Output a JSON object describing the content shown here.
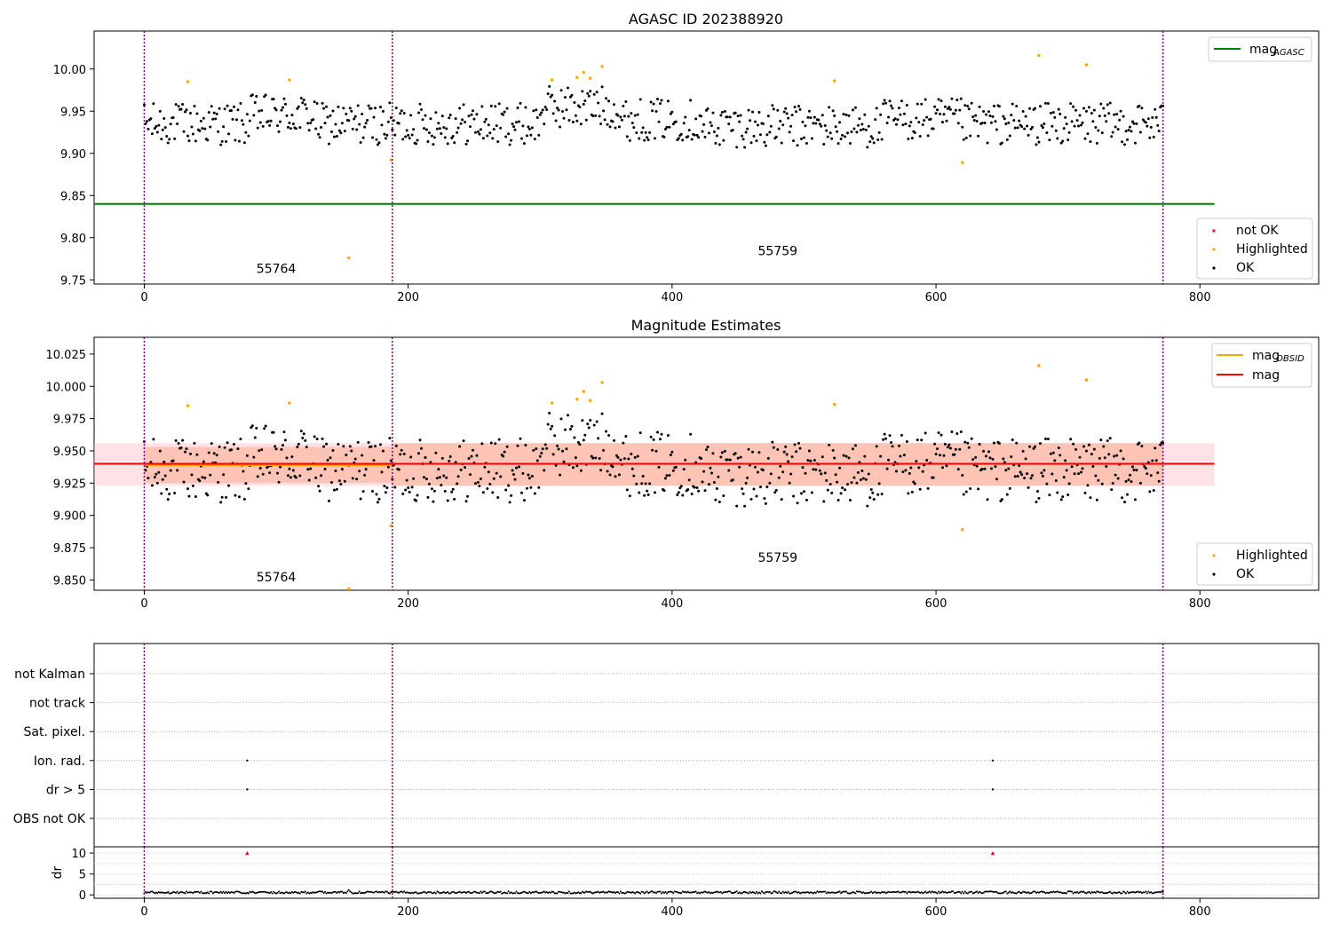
{
  "chart_data": [
    {
      "type": "scatter",
      "title": "AGASC ID 202388920",
      "xlim": [
        -38,
        890
      ],
      "ylim": [
        9.745,
        10.045
      ],
      "xticks": [
        0,
        200,
        400,
        600,
        800
      ],
      "yticks": [
        9.75,
        9.8,
        9.85,
        9.9,
        9.95,
        10.0
      ],
      "ytick_labels": [
        "9.75",
        "9.80",
        "9.85",
        "9.90",
        "9.95",
        "10.00"
      ],
      "obs_boundaries": [
        0,
        188,
        772
      ],
      "obs_labels": [
        {
          "text": "55764",
          "x": 100,
          "y": 9.758
        },
        {
          "text": "55759",
          "x": 480,
          "y": 9.779
        }
      ],
      "mag_agasc": 9.84,
      "mag_agasc_xrange": [
        -38,
        811
      ],
      "legend_upper": [
        {
          "label": "mag",
          "sub": "AGASC",
          "color": "#008000"
        }
      ],
      "legend_lower": [
        {
          "label": "not OK",
          "color": "#ff0000"
        },
        {
          "label": "Highlighted",
          "color": "#ffa500"
        },
        {
          "label": "OK",
          "color": "#000000"
        }
      ],
      "highlighted": [
        [
          33,
          9.985
        ],
        [
          110,
          9.987
        ],
        [
          155,
          9.776
        ],
        [
          187,
          9.892
        ],
        [
          309,
          9.987
        ],
        [
          328,
          9.99
        ],
        [
          333,
          9.996
        ],
        [
          338,
          9.989
        ],
        [
          347,
          10.003
        ],
        [
          523,
          9.986
        ],
        [
          620,
          9.889
        ],
        [
          678,
          10.016
        ],
        [
          714,
          10.005
        ]
      ]
    },
    {
      "type": "scatter",
      "title": "Magnitude Estimates",
      "xlim": [
        -38,
        890
      ],
      "ylim": [
        9.842,
        10.038
      ],
      "xticks": [
        0,
        200,
        400,
        600,
        800
      ],
      "yticks": [
        9.85,
        9.875,
        9.9,
        9.925,
        9.95,
        9.975,
        10.0,
        10.025
      ],
      "ytick_labels": [
        "9.850",
        "9.875",
        "9.900",
        "9.925",
        "9.950",
        "9.975",
        "10.000",
        "10.025"
      ],
      "obs_boundaries": [
        0,
        188,
        772
      ],
      "obs_labels": [
        {
          "text": "55764",
          "x": 100,
          "y": 9.849
        },
        {
          "text": "55759",
          "x": 480,
          "y": 9.864
        }
      ],
      "mag": 9.94,
      "mag_band": [
        9.923,
        9.956
      ],
      "mag_xrange": [
        -38,
        811
      ],
      "mag_obsid": [
        {
          "x": [
            0,
            188
          ],
          "y": 9.939,
          "band": [
            9.925,
            9.953
          ]
        },
        {
          "x": [
            188,
            772
          ],
          "y": 9.94,
          "band": [
            9.923,
            9.956
          ]
        }
      ],
      "legend_upper": [
        {
          "label": "mag",
          "sub": "OBSID",
          "color": "#ffa500"
        },
        {
          "label": "mag",
          "sub": "",
          "color": "#ff0000"
        }
      ],
      "legend_lower": [
        {
          "label": "Highlighted",
          "color": "#ffa500"
        },
        {
          "label": "OK",
          "color": "#000000"
        }
      ],
      "highlighted": [
        [
          33,
          9.985
        ],
        [
          110,
          9.987
        ],
        [
          155,
          9.843
        ],
        [
          187,
          9.892
        ],
        [
          309,
          9.987
        ],
        [
          328,
          9.99
        ],
        [
          333,
          9.996
        ],
        [
          338,
          9.989
        ],
        [
          347,
          10.003
        ],
        [
          523,
          9.986
        ],
        [
          620,
          9.889
        ],
        [
          678,
          10.016
        ],
        [
          714,
          10.005
        ]
      ]
    },
    {
      "type": "scatter",
      "xlim": [
        -38,
        890
      ],
      "categories": [
        "not Kalman",
        "not track",
        "Sat. pixel.",
        "Ion. rad.",
        "dr > 5",
        "OBS not OK"
      ],
      "flag_points": [
        {
          "category": "Ion. rad.",
          "x": [
            78,
            643
          ]
        },
        {
          "category": "dr > 5",
          "x": [
            78,
            643
          ]
        }
      ],
      "obs_boundaries": [
        0,
        188,
        772
      ]
    },
    {
      "type": "scatter",
      "ylabel": "dr",
      "xlim": [
        -38,
        890
      ],
      "ylim": [
        -0.8,
        11.5
      ],
      "xticks": [
        0,
        200,
        400,
        600,
        800
      ],
      "yticks": [
        0,
        5,
        10
      ],
      "ytick_labels": [
        "0",
        "5",
        "10"
      ],
      "obs_boundaries": [
        0,
        188,
        772
      ],
      "not_ok_points": [
        [
          78,
          10.0
        ],
        [
          643,
          10.0
        ]
      ]
    }
  ]
}
